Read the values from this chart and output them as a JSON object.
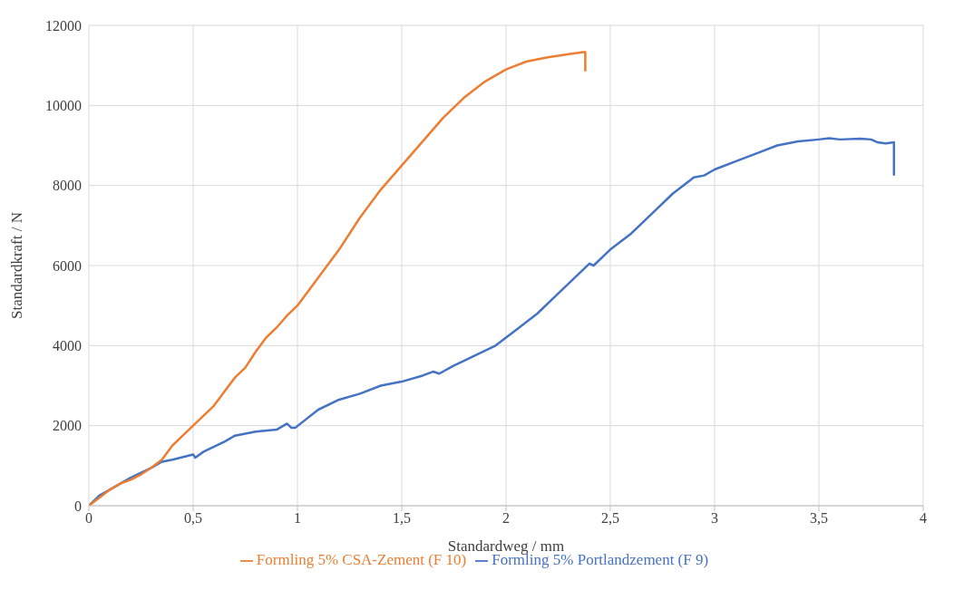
{
  "chart_data": {
    "type": "line",
    "xlabel": "Standardweg / mm",
    "ylabel": "Standardkraft / N",
    "xlim": [
      0,
      4
    ],
    "xticks": [
      0,
      {
        "value": 0.5,
        "label": "0,5"
      },
      1,
      {
        "value": 1.5,
        "label": "1,5"
      },
      2,
      {
        "value": 2.5,
        "label": "2,5"
      },
      3,
      {
        "value": 3.5,
        "label": "3,5"
      },
      4
    ],
    "ylim": [
      0,
      12000
    ],
    "yticks": [
      0,
      2000,
      4000,
      6000,
      8000,
      10000,
      12000
    ],
    "grid": true,
    "legend": "bottom",
    "marker": "none",
    "line_style": "solid",
    "series": [
      {
        "name": "Formling 5% Portlandzement (F 9)",
        "color": "#4472c4",
        "x": [
          0,
          0.05,
          0.1,
          0.2,
          0.3,
          0.35,
          0.4,
          0.5,
          0.51,
          0.55,
          0.65,
          0.7,
          0.75,
          0.8,
          0.9,
          0.95,
          0.97,
          0.99,
          1.1,
          1.2,
          1.3,
          1.4,
          1.45,
          1.5,
          1.6,
          1.65,
          1.68,
          1.75,
          1.85,
          1.95,
          2.05,
          2.15,
          2.25,
          2.35,
          2.4,
          2.42,
          2.5,
          2.6,
          2.7,
          2.8,
          2.9,
          2.95,
          3.0,
          3.1,
          3.2,
          3.3,
          3.4,
          3.5,
          3.55,
          3.6,
          3.7,
          3.75,
          3.78,
          3.82,
          3.86,
          3.86
        ],
        "values": [
          0,
          250,
          400,
          700,
          950,
          1100,
          1150,
          1280,
          1200,
          1350,
          1600,
          1750,
          1800,
          1850,
          1900,
          2050,
          1950,
          1950,
          2400,
          2650,
          2800,
          3000,
          3050,
          3100,
          3250,
          3350,
          3300,
          3500,
          3750,
          4000,
          4400,
          4800,
          5300,
          5800,
          6050,
          6000,
          6400,
          6800,
          7300,
          7800,
          8200,
          8250,
          8400,
          8600,
          8800,
          9000,
          9100,
          9150,
          9180,
          9150,
          9170,
          9150,
          9080,
          9050,
          9080,
          8250
        ]
      },
      {
        "name": "Formling 5% CSA-Zement (F 10)",
        "color": "#ed7d31",
        "x": [
          0,
          0.05,
          0.1,
          0.15,
          0.2,
          0.25,
          0.3,
          0.35,
          0.4,
          0.45,
          0.5,
          0.6,
          0.7,
          0.75,
          0.8,
          0.85,
          0.9,
          0.95,
          1.0,
          1.1,
          1.2,
          1.3,
          1.4,
          1.5,
          1.6,
          1.7,
          1.8,
          1.9,
          2.0,
          2.05,
          2.1,
          2.2,
          2.3,
          2.37,
          2.38,
          2.38
        ],
        "values": [
          0,
          200,
          400,
          550,
          650,
          780,
          950,
          1150,
          1500,
          1750,
          2000,
          2500,
          3200,
          3450,
          3850,
          4200,
          4450,
          4750,
          5000,
          5700,
          6400,
          7200,
          7900,
          8500,
          9100,
          9700,
          10200,
          10600,
          10900,
          11000,
          11100,
          11200,
          11280,
          11330,
          11330,
          10850
        ]
      }
    ]
  }
}
